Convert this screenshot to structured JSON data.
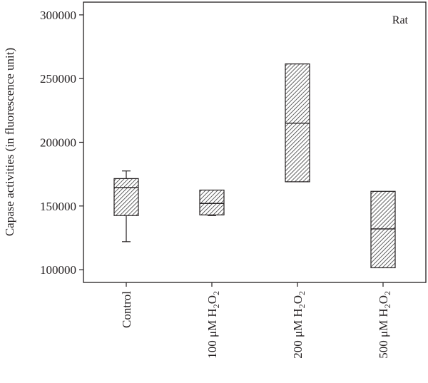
{
  "chart_data": {
    "type": "box",
    "ylabel": "Capase activities (in fluorescence unit)",
    "xlabel": "",
    "annotation": "Rat",
    "ylim": [
      90000,
      310000
    ],
    "yticks": [
      100000,
      150000,
      200000,
      250000,
      300000
    ],
    "ytick_labels": [
      "100000",
      "150000",
      "200000",
      "250000",
      "300000"
    ],
    "grid": false,
    "legend": "none",
    "fill": "diagonal hatch",
    "categories": [
      {
        "label": "Control",
        "label_parts": {
          "prefix": "Control",
          "sub1": "",
          "mid": "",
          "sub2": ""
        }
      },
      {
        "label": "100 μM H2O2",
        "label_parts": {
          "prefix": "100 μM H",
          "sub1": "2",
          "mid": "O",
          "sub2": "2"
        }
      },
      {
        "label": "200 μM H2O2",
        "label_parts": {
          "prefix": "200 μM H",
          "sub1": "2",
          "mid": "O",
          "sub2": "2"
        }
      },
      {
        "label": "500 μM H2O2",
        "label_parts": {
          "prefix": "500 μM H",
          "sub1": "2",
          "mid": "O",
          "sub2": "2"
        }
      }
    ],
    "boxes": [
      {
        "whisker_low": 122000,
        "q1": 142500,
        "median": 164500,
        "q3": 171500,
        "whisker_high": 177500
      },
      {
        "whisker_low": 142500,
        "q1": 143000,
        "median": 152000,
        "q3": 162500,
        "whisker_high": 162500
      },
      {
        "whisker_low": 169000,
        "q1": 169000,
        "median": 215000,
        "q3": 261500,
        "whisker_high": 261500
      },
      {
        "whisker_low": 101500,
        "q1": 101500,
        "median": 132000,
        "q3": 161500,
        "whisker_high": 161500
      }
    ]
  }
}
